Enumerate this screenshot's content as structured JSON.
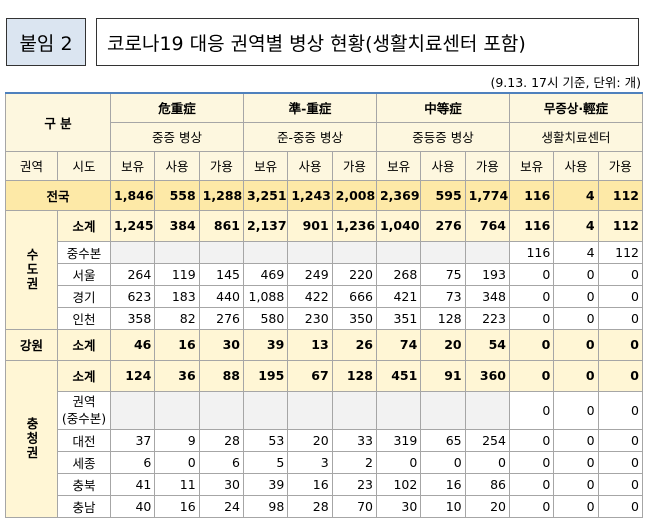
{
  "header": {
    "label": "붙임 2",
    "title": "코로나19 대응 권역별 병상 현황(생활치료센터 포함)",
    "note": "(9.13. 17시 기준, 단위: 개)"
  },
  "table": {
    "group_header": "구 분",
    "groups": [
      {
        "name": "危重症",
        "sub": "중증 병상"
      },
      {
        "name": "準-重症",
        "sub": "준-중증 병상"
      },
      {
        "name": "中等症",
        "sub": "중등증 병상"
      },
      {
        "name": "무증상·輕症",
        "sub": "생활치료센터"
      }
    ],
    "col_headers": [
      "권역",
      "시도"
    ],
    "measures": [
      "보유",
      "사용",
      "가용"
    ],
    "regions": [
      {
        "name": "전국",
        "rows": [
          {
            "cells": [
              "1,846",
              "558",
              "1,288",
              "3,251",
              "1,243",
              "2,008",
              "2,369",
              "595",
              "1,774",
              "116",
              "4",
              "112"
            ]
          }
        ]
      },
      {
        "name": "수도권",
        "rows": [
          {
            "name": "소계",
            "cells": [
              "1,245",
              "384",
              "861",
              "2,137",
              "901",
              "1,236",
              "1,040",
              "276",
              "764",
              "116",
              "4",
              "112"
            ]
          },
          {
            "name": "중수본",
            "cells": [
              null,
              null,
              null,
              null,
              null,
              null,
              null,
              null,
              null,
              "116",
              "4",
              "112"
            ]
          },
          {
            "name": "서울",
            "cells": [
              "264",
              "119",
              "145",
              "469",
              "249",
              "220",
              "268",
              "75",
              "193",
              "0",
              "0",
              "0"
            ]
          },
          {
            "name": "경기",
            "cells": [
              "623",
              "183",
              "440",
              "1,088",
              "422",
              "666",
              "421",
              "73",
              "348",
              "0",
              "0",
              "0"
            ]
          },
          {
            "name": "인천",
            "cells": [
              "358",
              "82",
              "276",
              "580",
              "230",
              "350",
              "351",
              "128",
              "223",
              "0",
              "0",
              "0"
            ]
          }
        ]
      },
      {
        "name": "강원",
        "rows": [
          {
            "name": "소계",
            "cells": [
              "46",
              "16",
              "30",
              "39",
              "13",
              "26",
              "74",
              "20",
              "54",
              "0",
              "0",
              "0"
            ]
          }
        ]
      },
      {
        "name": "충청권",
        "rows": [
          {
            "name": "소계",
            "cells": [
              "124",
              "36",
              "88",
              "195",
              "67",
              "128",
              "451",
              "91",
              "360",
              "0",
              "0",
              "0"
            ]
          },
          {
            "name": "권역\n(중수본)",
            "cells": [
              null,
              null,
              null,
              null,
              null,
              null,
              null,
              null,
              null,
              "0",
              "0",
              "0"
            ]
          },
          {
            "name": "대전",
            "cells": [
              "37",
              "9",
              "28",
              "53",
              "20",
              "33",
              "319",
              "65",
              "254",
              "0",
              "0",
              "0"
            ]
          },
          {
            "name": "세종",
            "cells": [
              "6",
              "0",
              "6",
              "5",
              "3",
              "2",
              "0",
              "0",
              "0",
              "0",
              "0",
              "0"
            ]
          },
          {
            "name": "충북",
            "cells": [
              "41",
              "11",
              "30",
              "39",
              "16",
              "23",
              "102",
              "16",
              "86",
              "0",
              "0",
              "0"
            ]
          },
          {
            "name": "충남",
            "cells": [
              "40",
              "16",
              "24",
              "98",
              "28",
              "70",
              "30",
              "10",
              "20",
              "0",
              "0",
              "0"
            ]
          }
        ]
      }
    ]
  }
}
